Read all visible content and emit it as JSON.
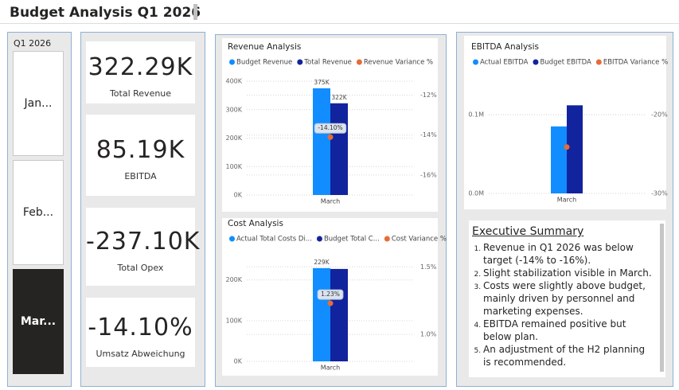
{
  "header": {
    "title": "Budget Analysis Q1 2026"
  },
  "slicer": {
    "title": "Q1 2026",
    "items": [
      "Jan...",
      "Feb...",
      "Mar..."
    ],
    "selected_index": 2
  },
  "kpis": [
    {
      "value": "322.29K",
      "label": "Total Revenue"
    },
    {
      "value": "85.19K",
      "label": "EBITDA"
    },
    {
      "value": "-237.10K",
      "label": "Total Opex"
    },
    {
      "value": "-14.10%",
      "label": "Umsatz Abweichung"
    }
  ],
  "chart_data": [
    {
      "type": "bar",
      "title": "Revenue Analysis",
      "categories": [
        "March"
      ],
      "series": [
        {
          "name": "Budget Revenue",
          "color": "#118DFF",
          "values": [
            375000
          ],
          "value_labels": [
            "375K"
          ]
        },
        {
          "name": "Total Revenue",
          "color": "#12239E",
          "values": [
            322290
          ],
          "value_labels": [
            "322K"
          ]
        },
        {
          "name": "Revenue Variance %",
          "color": "#E66C37",
          "axis": "y2",
          "values": [
            -14.1
          ],
          "value_labels": [
            "-14.10%"
          ]
        }
      ],
      "ylim": [
        0,
        400000
      ],
      "yticks": [
        {
          "value": 0,
          "label": "0K"
        },
        {
          "value": 100000,
          "label": "100K"
        },
        {
          "value": 200000,
          "label": "200K"
        },
        {
          "value": 300000,
          "label": "300K"
        },
        {
          "value": 400000,
          "label": "400K"
        }
      ],
      "y2lim": [
        -17,
        -11.3
      ],
      "y2ticks": [
        {
          "value": -12,
          "label": "-12%"
        },
        {
          "value": -14,
          "label": "-14%"
        },
        {
          "value": -16,
          "label": "-16%"
        }
      ],
      "grid": true
    },
    {
      "type": "bar",
      "title": "Cost Analysis",
      "categories": [
        "March"
      ],
      "series": [
        {
          "name": "Actual Total Costs Di...",
          "color": "#118DFF",
          "values": [
            229000
          ],
          "value_labels": [
            "229K"
          ]
        },
        {
          "name": "Budget Total C...",
          "color": "#12239E",
          "values": [
            227000
          ]
        },
        {
          "name": "Cost Variance %",
          "color": "#E66C37",
          "axis": "y2",
          "values": [
            1.23
          ],
          "value_labels": [
            "1.23%"
          ]
        }
      ],
      "ylim": [
        0,
        262000
      ],
      "yticks": [
        {
          "value": 0,
          "label": "0K"
        },
        {
          "value": 100000,
          "label": "100K"
        },
        {
          "value": 200000,
          "label": "200K"
        }
      ],
      "y2lim": [
        0.8,
        1.59
      ],
      "y2ticks": [
        {
          "value": 1.5,
          "label": "1.5%"
        },
        {
          "value": 1,
          "label": "1.0%"
        }
      ],
      "grid": true
    },
    {
      "type": "bar",
      "title": "EBITDA Analysis",
      "categories": [
        "March"
      ],
      "series": [
        {
          "name": "Actual EBITDA",
          "color": "#118DFF",
          "values": [
            85190
          ]
        },
        {
          "name": "Budget EBITDA",
          "color": "#12239E",
          "values": [
            112000
          ]
        },
        {
          "name": "EBITDA Variance %",
          "color": "#E66C37",
          "axis": "y2",
          "values": [
            -24.1
          ]
        }
      ],
      "ylim": [
        0,
        170000
      ],
      "yticks": [
        {
          "value": 0,
          "label": "0.0M"
        },
        {
          "value": 100000,
          "label": "0.1M"
        }
      ],
      "y2lim": [
        -30,
        -13
      ],
      "y2ticks": [
        {
          "value": -20,
          "label": "-20%"
        },
        {
          "value": -30,
          "label": "-30%"
        }
      ],
      "grid": true
    }
  ],
  "summary": {
    "title": "Executive Summary",
    "items": [
      "Revenue in Q1 2026 was below target (-14% to -16%).",
      "Slight stabilization visible in March.",
      "Costs were slightly above budget, mainly driven by personnel and marketing expenses.",
      "EBITDA remained positive but below plan.",
      "An adjustment of the H2 planning is recommended."
    ]
  }
}
